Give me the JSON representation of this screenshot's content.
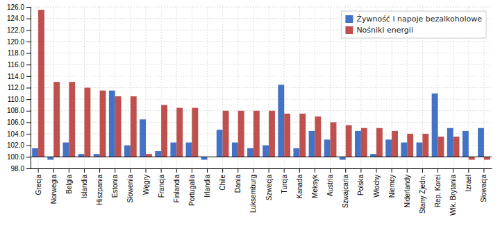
{
  "chart_data": {
    "type": "bar",
    "categories": [
      "Grecja",
      "Norwegia",
      "Belgia",
      "Islandia",
      "Hiszpania",
      "Estonia",
      "Słowenia",
      "Węgry",
      "Francja",
      "Finlandia",
      "Portugalia",
      "Irlandia",
      "Chile",
      "Dania",
      "Luksemburg",
      "Szwecja",
      "Turcja",
      "Kanada",
      "Meksyk",
      "Austria",
      "Szwajcaria",
      "Polska",
      "Włochy",
      "Niemcy",
      "Niderlandy",
      "Stany Zjedn.",
      "Rep. Korei",
      "Wlk. Brytania",
      "Izrael",
      "Słowacja"
    ],
    "series": [
      {
        "name": "Żywność i napoje bezalkoholowe",
        "color": "#4472C4",
        "values": [
          101.5,
          99.5,
          102.5,
          100.5,
          100.5,
          111.5,
          102.0,
          106.5,
          101.0,
          102.5,
          102.5,
          99.5,
          104.7,
          102.5,
          101.5,
          102.0,
          112.5,
          101.5,
          104.5,
          103.0,
          99.5,
          104.5,
          100.5,
          103.0,
          102.5,
          102.5,
          111.0,
          105.0,
          104.5,
          105.0
        ]
      },
      {
        "name": "Nośniki energii",
        "color": "#C0504D",
        "values": [
          125.5,
          113.0,
          113.0,
          112.0,
          111.5,
          110.5,
          110.5,
          100.5,
          109.0,
          108.5,
          108.5,
          100.0,
          108.0,
          108.0,
          108.0,
          108.0,
          107.5,
          107.5,
          107.0,
          106.0,
          105.5,
          105.0,
          105.0,
          104.5,
          104.0,
          104.0,
          103.5,
          103.5,
          99.5,
          99.5
        ]
      }
    ],
    "base": 100.0,
    "ylim": [
      98.0,
      126.0
    ],
    "yticks": [
      {
        "value": 98.0,
        "label": "98.0"
      },
      {
        "value": 100.0,
        "label": "100.0"
      },
      {
        "value": 102.0,
        "label": "102.0"
      },
      {
        "value": 104.0,
        "label": "104.0"
      },
      {
        "value": 106.0,
        "label": "106.0"
      },
      {
        "value": 108.0,
        "label": "108.0"
      },
      {
        "value": 110.0,
        "label": "110.0"
      },
      {
        "value": 112.0,
        "label": "112.0"
      },
      {
        "value": 114.0,
        "label": "114.0"
      },
      {
        "value": 116.0,
        "label": "116.0"
      },
      {
        "value": 118.0,
        "label": "118.0"
      },
      {
        "value": 120.0,
        "label": "120.0"
      },
      {
        "value": 122.0,
        "label": "122.0"
      },
      {
        "value": 124.0,
        "label": "124.0"
      },
      {
        "value": 126.0,
        "label": "126.0"
      }
    ],
    "grid": true,
    "legend": "upper right"
  }
}
